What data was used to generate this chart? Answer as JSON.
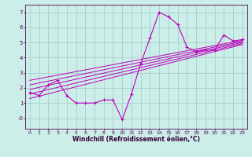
{
  "xlabel": "Windchill (Refroidissement éolien,°C)",
  "background_color": "#cceee8",
  "grid_color": "#aacccc",
  "line_color": "#bb00bb",
  "xlim": [
    -0.5,
    23.5
  ],
  "ylim": [
    -0.7,
    7.5
  ],
  "yticks": [
    0,
    1,
    2,
    3,
    4,
    5,
    6,
    7
  ],
  "ytick_labels": [
    "-0",
    "1",
    "2",
    "3",
    "4",
    "5",
    "6",
    "7"
  ],
  "xticks": [
    0,
    1,
    2,
    3,
    4,
    5,
    6,
    7,
    8,
    9,
    10,
    11,
    12,
    13,
    14,
    15,
    16,
    17,
    18,
    19,
    20,
    21,
    22,
    23
  ],
  "data_x": [
    0,
    1,
    2,
    3,
    4,
    5,
    6,
    7,
    8,
    9,
    10,
    11,
    12,
    13,
    14,
    15,
    16,
    17,
    18,
    19,
    20,
    21,
    22,
    23
  ],
  "data_y": [
    1.7,
    1.5,
    2.2,
    2.5,
    1.5,
    1.0,
    1.0,
    1.0,
    1.2,
    1.2,
    -0.1,
    1.6,
    3.6,
    5.3,
    7.0,
    6.7,
    6.2,
    4.7,
    4.4,
    4.5,
    4.5,
    5.5,
    5.1,
    5.2
  ],
  "reg_lines": [
    [
      1.3,
      0.155
    ],
    [
      1.6,
      0.145
    ],
    [
      1.9,
      0.135
    ],
    [
      2.2,
      0.125
    ],
    [
      2.5,
      0.115
    ]
  ]
}
